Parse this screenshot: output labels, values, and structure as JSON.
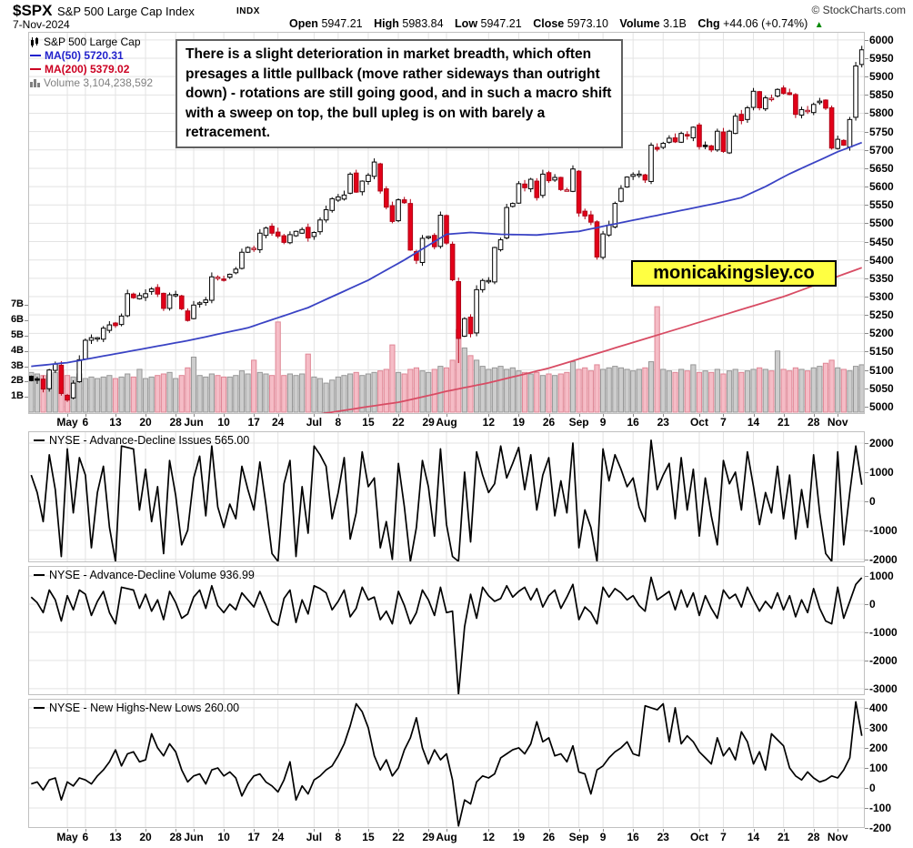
{
  "header": {
    "symbol": "$SPX",
    "name": "S&P 500 Large Cap Index",
    "exchange": "INDX",
    "copyright": "© StockCharts.com",
    "date": "7-Nov-2024",
    "quote": {
      "open_label": "Open",
      "open": "5947.21",
      "high_label": "High",
      "high": "5983.84",
      "low_label": "Low",
      "low": "5947.21",
      "close_label": "Close",
      "close": "5973.10",
      "volume_label": "Volume",
      "volume": "3.1B",
      "chg_label": "Chg",
      "chg": "+44.06 (+0.74%)",
      "up_arrow": "▲"
    }
  },
  "legend": {
    "series": "S&P 500 Large Cap",
    "ma50_label": "MA(50) 5720.31",
    "ma200_label": "MA(200) 5379.02",
    "volume_label": "Volume 3,104,238,592"
  },
  "annotation": {
    "text": "There is a slight deterioration in market breadth, which often presages a little pullback (move rather sideways than outright down) - rotations are still going good, and in such a macro shift with a sweep on top, the bull upleg is on with barely a retracement."
  },
  "watermark": {
    "text": "monicakingsley.co",
    "bg": "#ffff42"
  },
  "colors": {
    "grid": "#e3e3e3",
    "panel_border": "#c0c0c0",
    "candle_up_stroke": "#000000",
    "candle_down_stroke": "#b00014",
    "candle_down_fill": "#e30019",
    "vol_up_fill": "#cdcdcd",
    "vol_up_stroke": "#979797",
    "vol_down_fill": "#f5bcc6",
    "vol_down_stroke": "#df8695",
    "ma50": "#3a43c4",
    "ma200": "#d84c64",
    "legend_ma50": "#2222cc",
    "legend_ma200": "#cc0022",
    "legend_volume": "#808080",
    "green": "#008800",
    "watermark_bg": "#ffff42"
  },
  "price_axis": {
    "max": 6000,
    "min": 5000,
    "step": 50
  },
  "volume_axis_labels": [
    "7B",
    "6B",
    "5B",
    "4B",
    "3B",
    "2B",
    "1B"
  ],
  "x_axis": {
    "ticks": [
      {
        "label": "May",
        "i": 6,
        "month": true
      },
      {
        "label": "6",
        "i": 9
      },
      {
        "label": "13",
        "i": 14
      },
      {
        "label": "20",
        "i": 19
      },
      {
        "label": "28",
        "i": 24
      },
      {
        "label": "Jun",
        "i": 27,
        "month": true
      },
      {
        "label": "10",
        "i": 32
      },
      {
        "label": "17",
        "i": 37
      },
      {
        "label": "24",
        "i": 41
      },
      {
        "label": "Jul",
        "i": 47,
        "month": true
      },
      {
        "label": "8",
        "i": 51
      },
      {
        "label": "15",
        "i": 56
      },
      {
        "label": "22",
        "i": 61
      },
      {
        "label": "29",
        "i": 66
      },
      {
        "label": "Aug",
        "i": 69,
        "month": true
      },
      {
        "label": "12",
        "i": 76
      },
      {
        "label": "19",
        "i": 81
      },
      {
        "label": "26",
        "i": 86
      },
      {
        "label": "Sep",
        "i": 91,
        "month": true
      },
      {
        "label": "9",
        "i": 95
      },
      {
        "label": "16",
        "i": 100
      },
      {
        "label": "23",
        "i": 105
      },
      {
        "label": "Oct",
        "i": 111,
        "month": true
      },
      {
        "label": "7",
        "i": 115
      },
      {
        "label": "14",
        "i": 120
      },
      {
        "label": "21",
        "i": 125
      },
      {
        "label": "28",
        "i": 130
      },
      {
        "label": "Nov",
        "i": 134,
        "month": true
      }
    ]
  },
  "chart_data": [
    {
      "type": "candlestick",
      "name": "S&P 500 Large Cap ($SPX) daily with volume",
      "start_date": "23-Apr-2024",
      "end_date": "7-Nov-2024",
      "ylim": [
        4980,
        6022
      ],
      "last_close": 5973.1,
      "ma50_last": 5720.31,
      "ma200_last": 5379.02,
      "close": [
        5071,
        5072,
        5048,
        5100,
        5116,
        5036,
        5018,
        5064,
        5128,
        5181,
        5188,
        5188,
        5214,
        5223,
        5221,
        5247,
        5308,
        5297,
        5303,
        5308,
        5321,
        5307,
        5268,
        5305,
        5306,
        5267,
        5235,
        5277,
        5283,
        5291,
        5354,
        5353,
        5347,
        5361,
        5375,
        5421,
        5434,
        5432,
        5473,
        5487,
        5473,
        5465,
        5448,
        5469,
        5478,
        5483,
        5460,
        5475,
        5509,
        5537,
        5567,
        5572,
        5577,
        5634,
        5585,
        5615,
        5631,
        5667,
        5588,
        5544,
        5505,
        5564,
        5556,
        5427,
        5399,
        5459,
        5464,
        5436,
        5522,
        5446,
        5346,
        5186,
        5240,
        5199,
        5319,
        5344,
        5344,
        5434,
        5455,
        5543,
        5554,
        5608,
        5597,
        5620,
        5570,
        5634,
        5616,
        5625,
        5592,
        5591,
        5648,
        5528,
        5520,
        5503,
        5408,
        5471,
        5495,
        5554,
        5595,
        5626,
        5633,
        5634,
        5618,
        5713,
        5702,
        5718,
        5732,
        5722,
        5745,
        5738,
        5762,
        5709,
        5709,
        5700,
        5751,
        5696,
        5751,
        5792,
        5780,
        5815,
        5860,
        5815,
        5842,
        5841,
        5865,
        5854,
        5851,
        5797,
        5810,
        5808,
        5824,
        5833,
        5814,
        5705,
        5729,
        5713,
        5783,
        5929,
        5973
      ],
      "volume_billions": [
        2.6,
        2.5,
        2.4,
        2.5,
        2.6,
        2.7,
        2.4,
        2.3,
        2.5,
        2.2,
        2.3,
        2.2,
        2.3,
        2.4,
        2.2,
        2.3,
        2.5,
        2.3,
        2.8,
        2.2,
        2.3,
        2.4,
        2.5,
        2.6,
        2.2,
        2.4,
        2.9,
        3.6,
        2.4,
        2.3,
        2.5,
        2.4,
        2.3,
        2.3,
        2.4,
        2.7,
        2.5,
        3.4,
        2.6,
        2.5,
        2.4,
        5.9,
        2.4,
        2.5,
        2.4,
        2.5,
        3.8,
        2.3,
        2.2,
        1.9,
        2.1,
        2.3,
        2.4,
        2.5,
        2.6,
        2.4,
        2.5,
        2.6,
        2.7,
        2.8,
        4.4,
        2.6,
        2.5,
        2.8,
        2.9,
        2.7,
        2.6,
        2.8,
        3.0,
        2.9,
        3.4,
        5.4,
        4.2,
        3.7,
        3.4,
        3.0,
        2.8,
        2.9,
        3.0,
        2.8,
        2.9,
        2.7,
        2.6,
        2.5,
        2.6,
        2.4,
        2.5,
        2.4,
        2.5,
        2.6,
        3.3,
        2.8,
        2.9,
        2.7,
        3.1,
        2.8,
        2.9,
        3.0,
        2.9,
        2.8,
        2.7,
        2.8,
        2.9,
        3.3,
        6.9,
        2.8,
        2.7,
        2.6,
        2.8,
        2.7,
        3.1,
        2.6,
        2.7,
        2.6,
        2.8,
        2.5,
        2.7,
        2.8,
        2.6,
        2.7,
        2.8,
        2.9,
        2.8,
        2.7,
        4.0,
        2.8,
        2.7,
        2.9,
        2.8,
        2.7,
        2.9,
        3.0,
        3.2,
        3.4,
        2.9,
        2.8,
        2.7,
        3.0,
        3.1
      ],
      "ma50_anchors": [
        [
          0,
          5110
        ],
        [
          6,
          5120
        ],
        [
          16,
          5150
        ],
        [
          26,
          5180
        ],
        [
          36,
          5215
        ],
        [
          46,
          5270
        ],
        [
          56,
          5345
        ],
        [
          62,
          5400
        ],
        [
          67,
          5450
        ],
        [
          69,
          5470
        ],
        [
          73,
          5475
        ],
        [
          78,
          5470
        ],
        [
          84,
          5468
        ],
        [
          91,
          5478
        ],
        [
          96,
          5495
        ],
        [
          102,
          5515
        ],
        [
          108,
          5535
        ],
        [
          114,
          5555
        ],
        [
          118,
          5570
        ],
        [
          122,
          5600
        ],
        [
          126,
          5635
        ],
        [
          130,
          5665
        ],
        [
          134,
          5695
        ],
        [
          138,
          5720
        ]
      ],
      "ma200_anchors": [
        [
          0,
          4870
        ],
        [
          16,
          4900
        ],
        [
          26,
          4925
        ],
        [
          36,
          4950
        ],
        [
          46,
          4975
        ],
        [
          56,
          5000
        ],
        [
          61,
          5012
        ],
        [
          66,
          5030
        ],
        [
          69,
          5042
        ],
        [
          76,
          5065
        ],
        [
          81,
          5085
        ],
        [
          86,
          5105
        ],
        [
          91,
          5130
        ],
        [
          96,
          5155
        ],
        [
          100,
          5175
        ],
        [
          105,
          5200
        ],
        [
          111,
          5230
        ],
        [
          115,
          5250
        ],
        [
          120,
          5275
        ],
        [
          125,
          5300
        ],
        [
          130,
          5330
        ],
        [
          134,
          5355
        ],
        [
          138,
          5379
        ]
      ],
      "wick_overrides": {
        "71": {
          "low": 5119
        },
        "138": {
          "high": 5983.84
        }
      }
    },
    {
      "type": "line",
      "label": "NYSE - Advance-Decline Issues",
      "value": "565.00",
      "ylim": [
        -2100,
        2406
      ],
      "y_ticks": [
        2000,
        1000,
        0,
        -1000,
        -2000
      ],
      "values": [
        900,
        300,
        -700,
        1600,
        400,
        -1900,
        1800,
        -400,
        1500,
        900,
        -1600,
        300,
        1200,
        -900,
        -2200,
        1900,
        1850,
        1800,
        -300,
        1100,
        -700,
        500,
        -1800,
        1400,
        200,
        -1500,
        -1000,
        800,
        1550,
        -500,
        1900,
        -200,
        -900,
        -100,
        -600,
        1200,
        400,
        -300,
        1350,
        -100,
        -1800,
        -2300,
        600,
        1400,
        -1900,
        500,
        -1100,
        1900,
        1600,
        1200,
        -600,
        300,
        1500,
        -1300,
        -400,
        1700,
        500,
        800,
        -1600,
        -700,
        -2000,
        1300,
        -200,
        -2100,
        -900,
        1400,
        500,
        -1200,
        1800,
        -800,
        -1900,
        -2200,
        1000,
        -1400,
        1700,
        900,
        300,
        600,
        1900,
        800,
        1300,
        1850,
        400,
        1600,
        -300,
        900,
        1500,
        -500,
        700,
        -400,
        2000,
        -1600,
        -300,
        -900,
        -2100,
        1800,
        700,
        1600,
        1100,
        500,
        800,
        -200,
        -700,
        2100,
        400,
        900,
        1300,
        -600,
        1500,
        -300,
        1100,
        -1200,
        800,
        -500,
        -1500,
        1400,
        600,
        1000,
        -300,
        1700,
        500,
        -800,
        300,
        -400,
        1200,
        -600,
        900,
        -1300,
        400,
        -900,
        1600,
        -400,
        -1800,
        -2200,
        1700,
        -1500,
        300,
        1900,
        565
      ]
    },
    {
      "type": "line",
      "label": "NYSE - Advance-Decline Volume",
      "value": "936.99",
      "ylim": [
        -3230,
        1355
      ],
      "y_ticks": [
        1000,
        0,
        -1000,
        -2000,
        -3000
      ],
      "values": [
        250,
        50,
        -300,
        500,
        150,
        -600,
        300,
        -200,
        500,
        350,
        -400,
        100,
        450,
        -300,
        -700,
        600,
        550,
        500,
        -150,
        350,
        -250,
        150,
        -550,
        450,
        50,
        -500,
        -350,
        250,
        500,
        -150,
        650,
        -50,
        -300,
        0,
        -200,
        400,
        150,
        -100,
        450,
        -50,
        -600,
        -750,
        200,
        500,
        -650,
        150,
        -350,
        650,
        550,
        400,
        -200,
        100,
        500,
        -450,
        -150,
        600,
        150,
        250,
        -550,
        -250,
        -700,
        450,
        -50,
        -700,
        -300,
        500,
        150,
        -400,
        600,
        -300,
        -250,
        -3300,
        -800,
        350,
        -500,
        600,
        300,
        100,
        200,
        650,
        250,
        450,
        600,
        150,
        550,
        -100,
        300,
        500,
        -150,
        250,
        700,
        -550,
        -100,
        -300,
        -700,
        600,
        250,
        550,
        400,
        150,
        300,
        -50,
        -250,
        950,
        150,
        300,
        450,
        -200,
        500,
        -100,
        400,
        -400,
        300,
        -150,
        -500,
        500,
        200,
        350,
        -100,
        600,
        150,
        -250,
        100,
        -150,
        400,
        -200,
        300,
        -450,
        150,
        -300,
        550,
        -150,
        -600,
        -700,
        600,
        -500,
        100,
        700,
        937
      ]
    },
    {
      "type": "line",
      "label": "NYSE - New Highs-New Lows",
      "value": "260.00",
      "ylim": [
        -200,
        445
      ],
      "y_ticks": [
        400,
        300,
        200,
        100,
        0,
        -100,
        -200
      ],
      "values": [
        20,
        30,
        -10,
        40,
        50,
        -60,
        30,
        10,
        50,
        40,
        20,
        60,
        90,
        130,
        190,
        110,
        170,
        180,
        130,
        140,
        270,
        200,
        160,
        220,
        180,
        90,
        30,
        60,
        70,
        20,
        90,
        100,
        60,
        80,
        50,
        -40,
        20,
        60,
        70,
        30,
        10,
        -20,
        40,
        130,
        -60,
        10,
        -30,
        40,
        60,
        90,
        110,
        160,
        220,
        310,
        420,
        380,
        300,
        160,
        90,
        140,
        60,
        100,
        190,
        250,
        350,
        200,
        120,
        190,
        140,
        170,
        40,
        -190,
        -60,
        -80,
        30,
        60,
        50,
        70,
        150,
        170,
        190,
        200,
        170,
        220,
        330,
        230,
        250,
        160,
        170,
        130,
        210,
        80,
        70,
        -30,
        90,
        110,
        150,
        180,
        200,
        230,
        170,
        160,
        410,
        400,
        390,
        420,
        230,
        400,
        220,
        260,
        230,
        180,
        150,
        120,
        250,
        160,
        200,
        140,
        280,
        230,
        120,
        180,
        90,
        270,
        240,
        210,
        100,
        60,
        40,
        80,
        50,
        30,
        40,
        60,
        50,
        90,
        150,
        430,
        260
      ]
    }
  ]
}
